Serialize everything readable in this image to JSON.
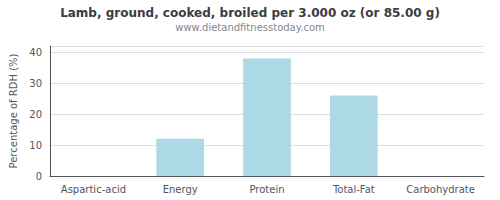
{
  "chart_data": {
    "type": "bar",
    "title": "Lamb, ground, cooked, broiled per 3.000 oz (or 85.00 g)",
    "subtitle": "www.dietandfitnesstoday.com",
    "categories": [
      "Aspartic-acid",
      "Energy",
      "Protein",
      "Total-Fat",
      "Carbohydrate"
    ],
    "values": [
      0.0,
      12,
      38,
      26,
      0.0
    ],
    "color": "#ADD8E6",
    "ylabel": "Percentage of RDH (%)",
    "ylim": [
      0,
      42
    ],
    "yticks": [
      0,
      10,
      20,
      30,
      40
    ],
    "grid": true
  }
}
